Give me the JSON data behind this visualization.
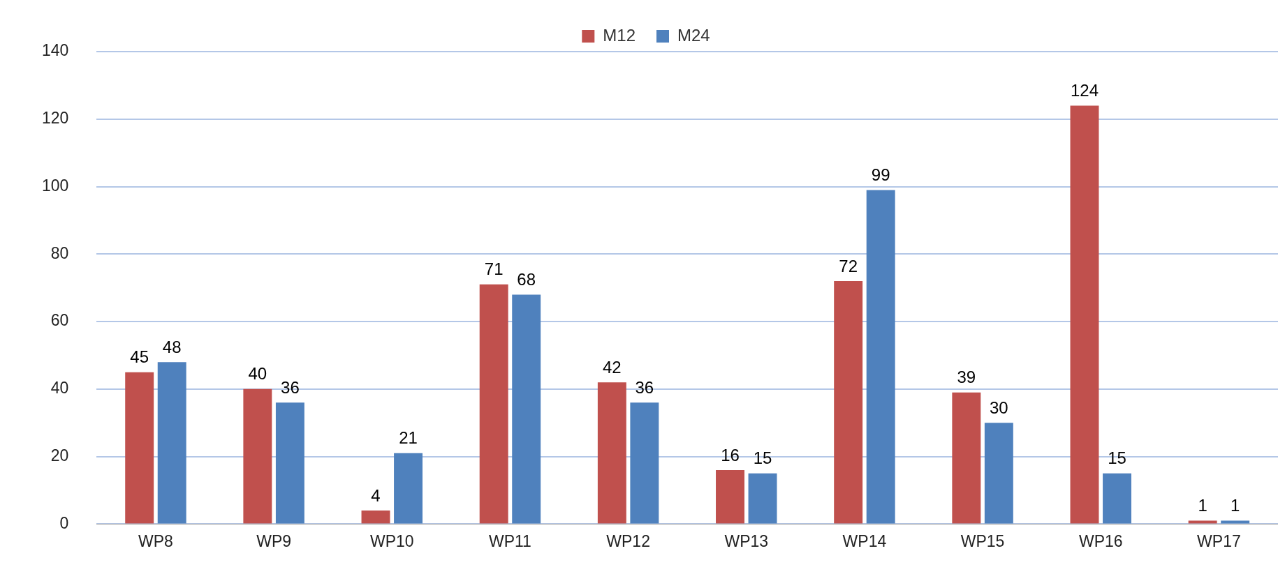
{
  "chart_data": {
    "type": "bar",
    "categories": [
      "WP8",
      "WP9",
      "WP10",
      "WP11",
      "WP12",
      "WP13",
      "WP14",
      "WP15",
      "WP16",
      "WP17"
    ],
    "series": [
      {
        "name": "M12",
        "color": "#c0504d",
        "values": [
          45,
          40,
          4,
          71,
          42,
          16,
          72,
          39,
          124,
          1
        ]
      },
      {
        "name": "M24",
        "color": "#4f81bd",
        "values": [
          48,
          36,
          21,
          68,
          36,
          15,
          99,
          30,
          15,
          1
        ]
      }
    ],
    "ylim": [
      0,
      140
    ],
    "yticks": [
      0,
      20,
      40,
      60,
      80,
      100,
      120,
      140
    ],
    "grid": "y",
    "legend": "top",
    "data_labels": true
  }
}
